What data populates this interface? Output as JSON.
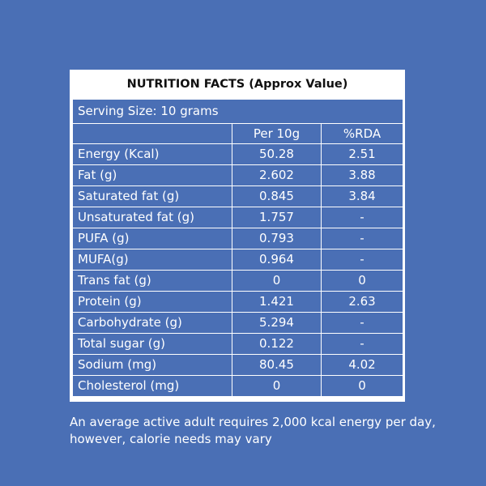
{
  "colors": {
    "background": "#4a6fb5",
    "card": "#ffffff",
    "text_light": "#ffffff",
    "title_text": "#111111"
  },
  "title": "NUTRITION FACTS (Approx Value)",
  "serving": "Serving Size: 10 grams",
  "columns": {
    "per": "Per 10g",
    "rda": "%RDA"
  },
  "rows": [
    {
      "label": "Energy (Kcal)",
      "per": "50.28",
      "rda": "2.51"
    },
    {
      "label": "Fat (g)",
      "per": "2.602",
      "rda": "3.88"
    },
    {
      "label": "Saturated fat (g)",
      "per": "0.845",
      "rda": "3.84"
    },
    {
      "label": "Unsaturated fat (g)",
      "per": "1.757",
      "rda": "-"
    },
    {
      "label": "PUFA (g)",
      "per": "0.793",
      "rda": "-"
    },
    {
      "label": "MUFA(g)",
      "per": "0.964",
      "rda": "-"
    },
    {
      "label": "Trans fat (g)",
      "per": "0",
      "rda": "0"
    },
    {
      "label": "Protein (g)",
      "per": "1.421",
      "rda": "2.63"
    },
    {
      "label": "Carbohydrate (g)",
      "per": "5.294",
      "rda": "-"
    },
    {
      "label": "Total sugar (g)",
      "per": "0.122",
      "rda": "-"
    },
    {
      "label": "Sodium (mg)",
      "per": "80.45",
      "rda": "4.02"
    },
    {
      "label": "Cholesterol (mg)",
      "per": "0",
      "rda": "0"
    }
  ],
  "footer": "An average active adult requires 2,000 kcal energy per day, however, calorie needs may vary"
}
